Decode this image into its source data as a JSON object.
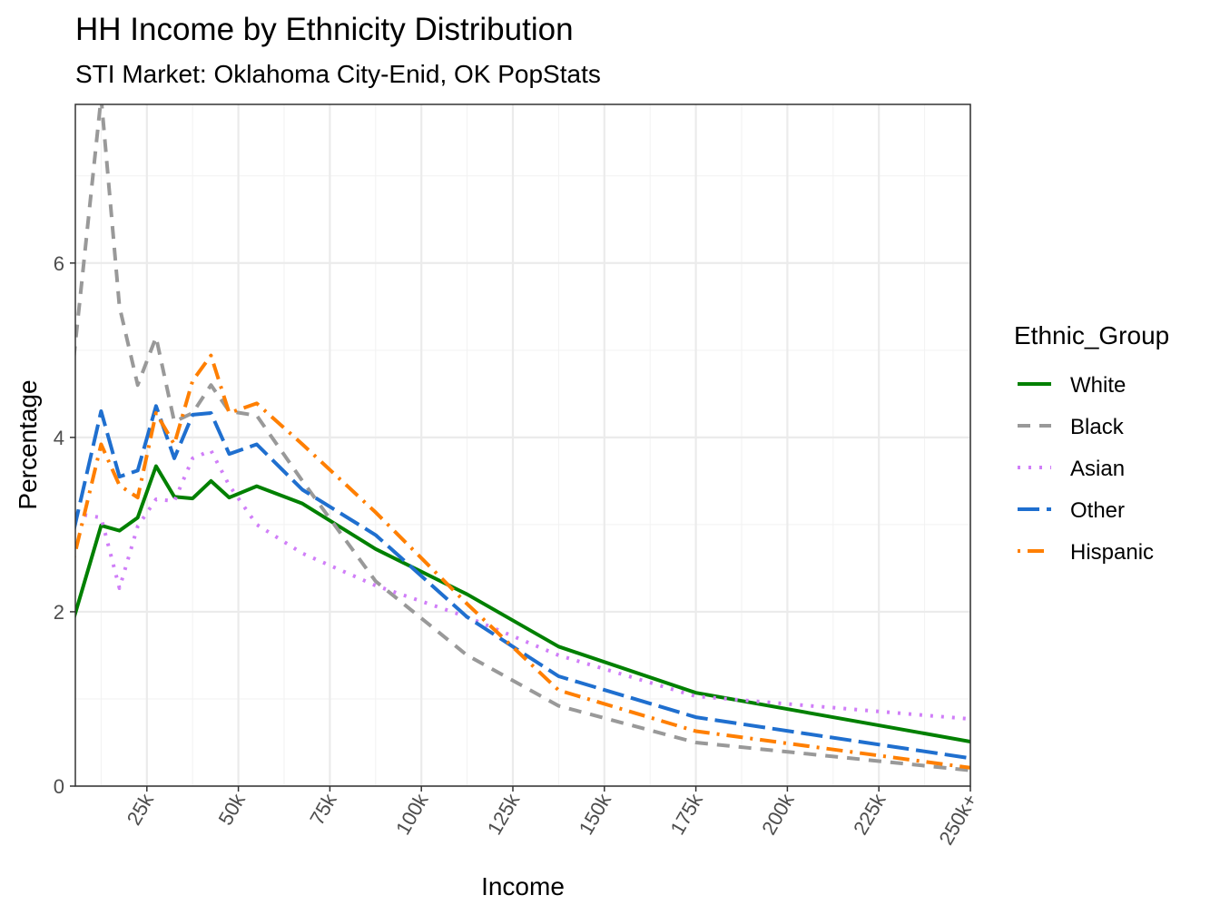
{
  "chart_data": {
    "type": "line",
    "title": "HH Income by Ethnicity Distribution",
    "subtitle": "STI Market: Oklahoma City-Enid, OK PopStats",
    "xlabel": "Income",
    "ylabel": "Percentage",
    "x_unit": "thousands of dollars",
    "x": [
      5,
      12.5,
      17.5,
      22.5,
      27.5,
      32.5,
      37.5,
      42.5,
      47.5,
      55,
      67.5,
      87.5,
      112.5,
      137.5,
      175,
      250
    ],
    "xlim": [
      5,
      250
    ],
    "ylim": [
      0,
      7.82
    ],
    "x_ticks": [
      25,
      50,
      75,
      100,
      125,
      150,
      175,
      200,
      225,
      250
    ],
    "x_tick_labels": [
      "25k",
      "50k",
      "75k",
      "100k",
      "125k",
      "150k",
      "175k",
      "200k",
      "225k",
      "250k+"
    ],
    "y_ticks": [
      0,
      2,
      4,
      6
    ],
    "y_tick_labels": [
      "0",
      "2",
      "4",
      "6"
    ],
    "grid": true,
    "legend": {
      "title": "Ethnic_Group",
      "position": "right"
    },
    "series": [
      {
        "name": "White",
        "color": "#008000",
        "dash": "solid",
        "values": [
          1.92,
          2.99,
          2.93,
          3.08,
          3.67,
          3.32,
          3.3,
          3.5,
          3.31,
          3.44,
          3.24,
          2.72,
          2.2,
          1.6,
          1.07,
          0.51
        ]
      },
      {
        "name": "Black",
        "color": "#999999",
        "dash": "dashed",
        "values": [
          4.9,
          7.9,
          5.5,
          4.6,
          5.15,
          4.18,
          4.28,
          4.6,
          4.3,
          4.25,
          3.5,
          2.35,
          1.5,
          0.92,
          0.5,
          0.18
        ]
      },
      {
        "name": "Asian",
        "color": "#d07ef8",
        "dash": "dotted",
        "values": [
          3.13,
          3.08,
          2.27,
          2.98,
          3.29,
          3.27,
          3.76,
          3.85,
          3.45,
          3.0,
          2.67,
          2.3,
          1.94,
          1.5,
          1.03,
          0.77
        ]
      },
      {
        "name": "Other",
        "color": "#1f6fcf",
        "dash": "longdash",
        "values": [
          2.93,
          4.3,
          3.55,
          3.62,
          4.36,
          3.76,
          4.26,
          4.28,
          3.81,
          3.92,
          3.4,
          2.88,
          1.94,
          1.26,
          0.79,
          0.32
        ]
      },
      {
        "name": "Hispanic",
        "color": "#ff7f00",
        "dash": "dotdash",
        "values": [
          2.61,
          3.92,
          3.45,
          3.31,
          4.28,
          3.92,
          4.65,
          4.94,
          4.28,
          4.39,
          3.92,
          3.14,
          2.09,
          1.1,
          0.63,
          0.21
        ]
      }
    ]
  }
}
